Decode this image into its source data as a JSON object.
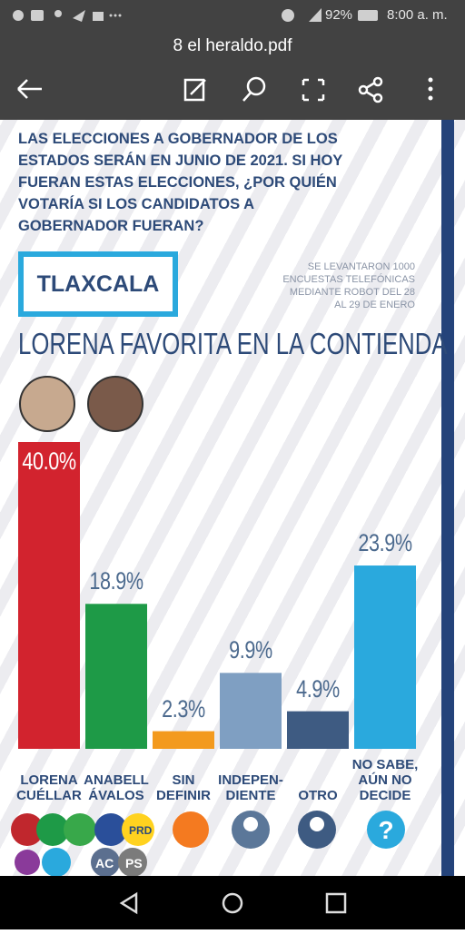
{
  "status_bar": {
    "battery": "92%",
    "time": "8:00 a. m."
  },
  "toolbar": {
    "title": "8 el heraldo.pdf"
  },
  "document": {
    "headline_lines": [
      "LAS ELECCIONES A GOBERNADOR DE LOS",
      "ESTADOS SERÁN EN JUNIO DE 2021. SI HOY",
      "FUERAN ESTAS ELECCIONES, ¿POR QUIÉN",
      "VOTARÍA SI LOS CANDIDATOS A",
      "GOBERNADOR FUERAN?"
    ],
    "state": "TLAXCALA",
    "note_lines": [
      "SE LEVANTARON 1000",
      "ENCUESTAS TELEFÓNICAS",
      "MEDIANTE ROBOT DEL 28",
      "AL 29 DE ENERO"
    ],
    "subtitle": "LORENA FAVORITA EN LA CONTIENDA",
    "party_logos": [
      "PRD",
      "AC",
      "PS"
    ]
  },
  "chart_data": {
    "type": "bar",
    "categories": [
      "LORENA CUÉLLAR",
      "ANABELL ÁVALOS",
      "SIN DEFINIR",
      "INDEPEN-DIENTE",
      "OTRO",
      "NO SABE, AÚN NO DECIDE"
    ],
    "values": [
      40.0,
      18.9,
      2.3,
      9.9,
      4.9,
      23.9
    ],
    "value_labels": [
      "40.0%",
      "18.9%",
      "2.3%",
      "9.9%",
      "4.9%",
      "23.9%"
    ],
    "colors": [
      "#d2232e",
      "#1e9a47",
      "#f39a1e",
      "#7f9fc2",
      "#3e5b82",
      "#2aa9dd"
    ]
  }
}
